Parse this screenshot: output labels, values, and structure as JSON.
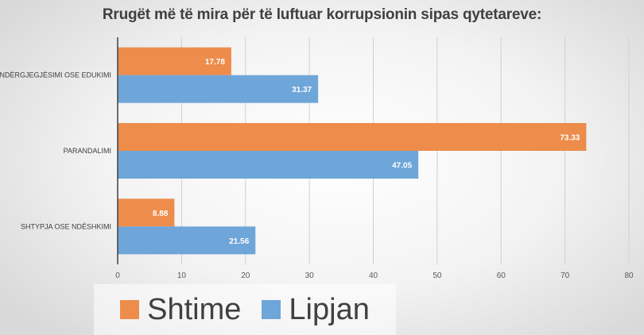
{
  "chart_data": {
    "type": "bar",
    "orientation": "horizontal",
    "title": "Rrugët më të mira për të luftuar korrupsionin sipas qytetareve:",
    "categories": [
      "NDËRGJEGJËSIMI OSE EDUKIMI",
      "PARANDALIMI",
      "SHTYPJA OSE NDËSHKIMI"
    ],
    "series": [
      {
        "name": "Shtime",
        "color": "#ed8c4b",
        "values": [
          17.78,
          73.33,
          8.88
        ]
      },
      {
        "name": "Lipjan",
        "color": "#6fa6d9",
        "values": [
          31.37,
          47.05,
          21.56
        ]
      }
    ],
    "xlim": [
      0,
      80
    ],
    "xticks": [
      "0",
      "10",
      "20",
      "30",
      "40",
      "50",
      "60",
      "70",
      "80"
    ],
    "grid": true,
    "legend": "bottom"
  }
}
